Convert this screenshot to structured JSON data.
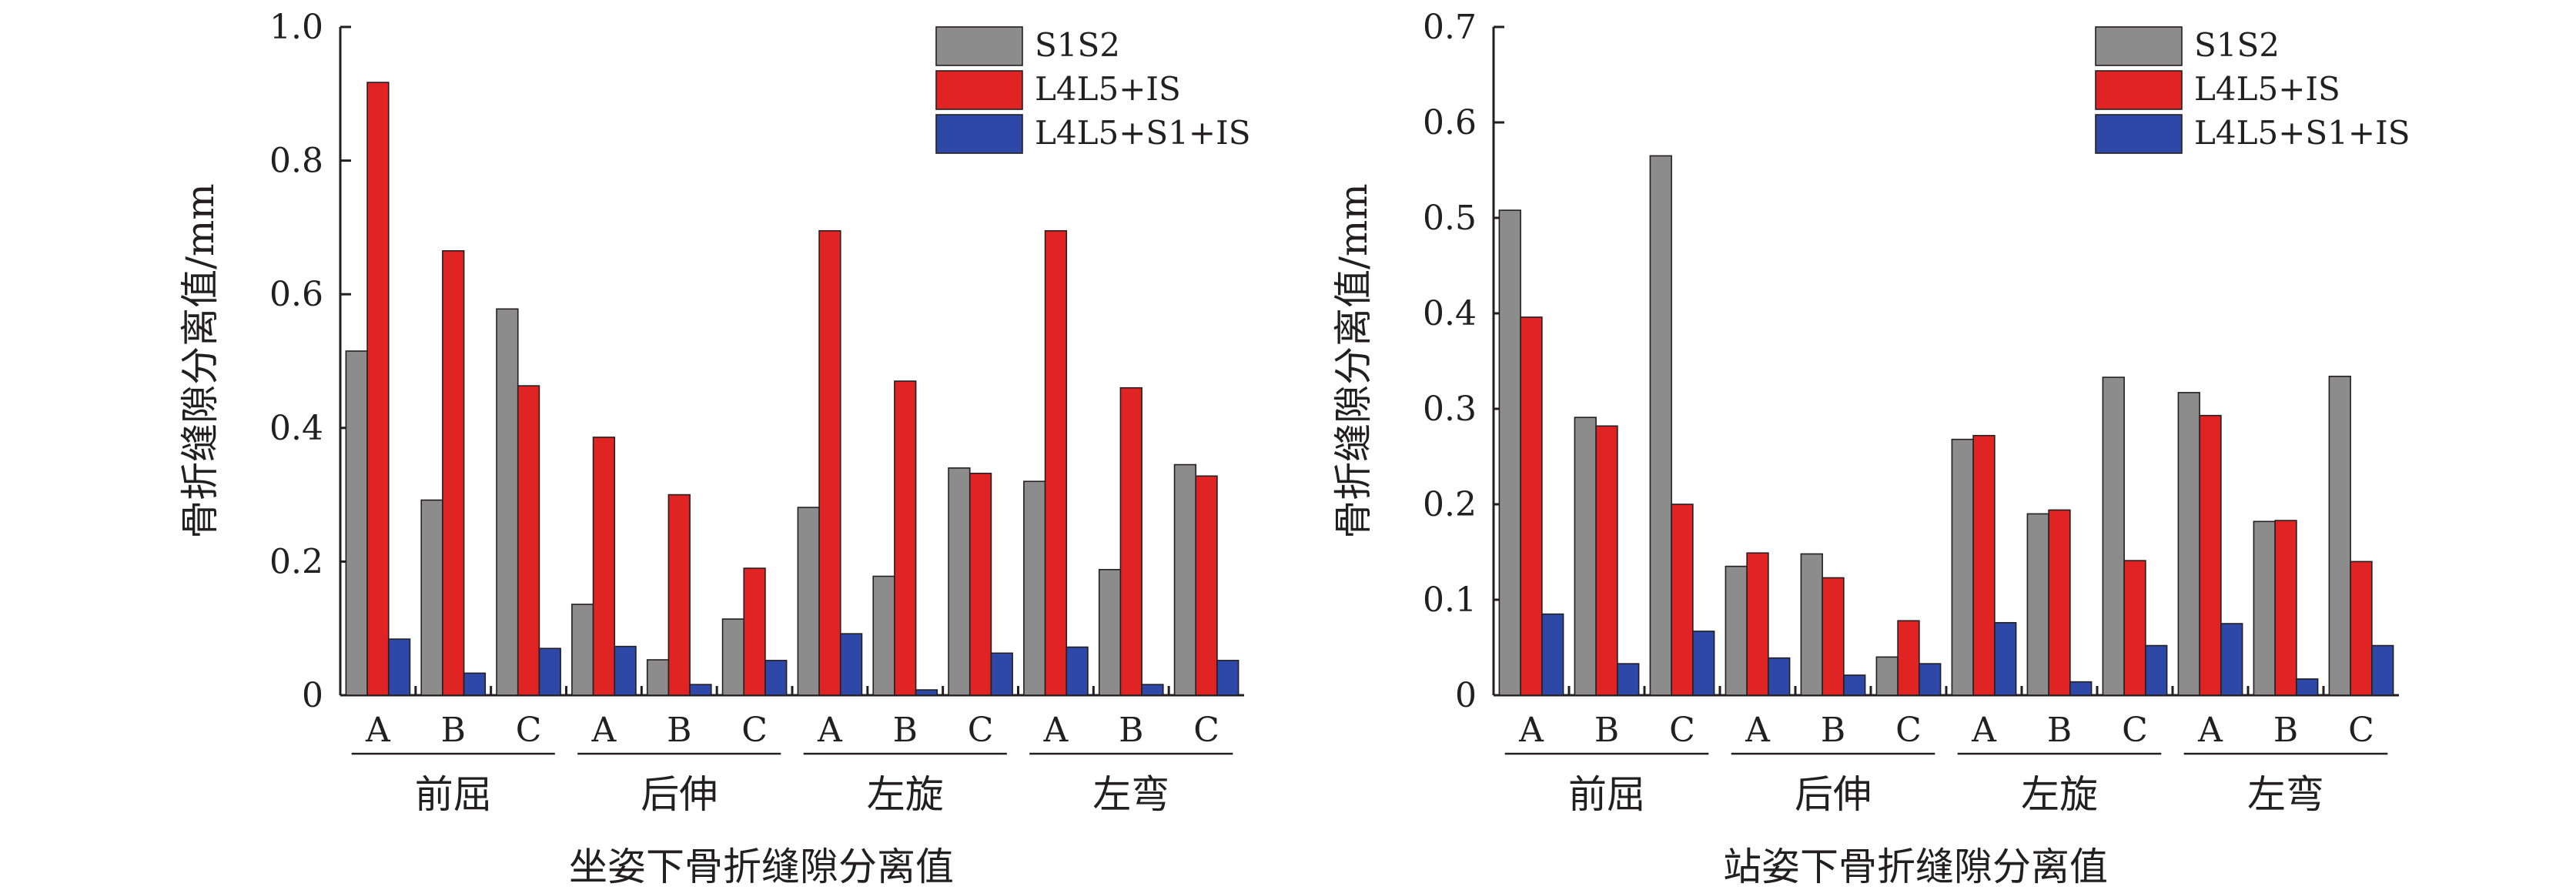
{
  "colors": {
    "S1S2": "#8c8c8c",
    "L4L5+IS": "#e02424",
    "L4L5+S1+IS": "#2e48a8",
    "axis": "#231f20"
  },
  "chart_data": [
    {
      "type": "bar",
      "title": "",
      "xlabel": "坐姿下骨折缝隙分离值",
      "ylabel": "骨折缝隙分离值/mm",
      "ylim": [
        0,
        1.0
      ],
      "yticks": [
        "0",
        "0.2",
        "0.4",
        "0.6",
        "0.8",
        "1.0"
      ],
      "ytick_values": [
        0,
        0.2,
        0.4,
        0.6,
        0.8,
        1.0
      ],
      "groups": [
        "前屈",
        "后伸",
        "左旋",
        "左弯"
      ],
      "subcategories": [
        "A",
        "B",
        "C"
      ],
      "legend_position": "top-right",
      "series": [
        {
          "name": "S1S2",
          "values": [
            0.515,
            0.292,
            0.578,
            0.136,
            0.053,
            0.114,
            0.281,
            0.178,
            0.34,
            0.32,
            0.188,
            0.345
          ]
        },
        {
          "name": "L4L5+IS",
          "values": [
            0.917,
            0.665,
            0.463,
            0.386,
            0.3,
            0.19,
            0.695,
            0.47,
            0.332,
            0.695,
            0.46,
            0.328
          ]
        },
        {
          "name": "L4L5+S1+IS",
          "values": [
            0.084,
            0.033,
            0.07,
            0.073,
            0.016,
            0.052,
            0.092,
            0.008,
            0.063,
            0.072,
            0.016,
            0.052
          ]
        }
      ]
    },
    {
      "type": "bar",
      "title": "",
      "xlabel": "站姿下骨折缝隙分离值",
      "ylabel": "骨折缝隙分离值/mm",
      "ylim": [
        0,
        0.7
      ],
      "yticks": [
        "0",
        "0.1",
        "0.2",
        "0.3",
        "0.4",
        "0.5",
        "0.6",
        "0.7"
      ],
      "ytick_values": [
        0,
        0.1,
        0.2,
        0.3,
        0.4,
        0.5,
        0.6,
        0.7
      ],
      "groups": [
        "前屈",
        "后伸",
        "左旋",
        "左弯"
      ],
      "subcategories": [
        "A",
        "B",
        "C"
      ],
      "legend_position": "top-right",
      "series": [
        {
          "name": "S1S2",
          "values": [
            0.508,
            0.291,
            0.565,
            0.135,
            0.148,
            0.04,
            0.268,
            0.19,
            0.333,
            0.317,
            0.182,
            0.334
          ]
        },
        {
          "name": "L4L5+IS",
          "values": [
            0.396,
            0.282,
            0.2,
            0.149,
            0.123,
            0.078,
            0.272,
            0.194,
            0.141,
            0.293,
            0.183,
            0.14
          ]
        },
        {
          "name": "L4L5+S1+IS",
          "values": [
            0.085,
            0.033,
            0.067,
            0.039,
            0.021,
            0.033,
            0.076,
            0.014,
            0.052,
            0.075,
            0.017,
            0.052
          ]
        }
      ]
    }
  ]
}
